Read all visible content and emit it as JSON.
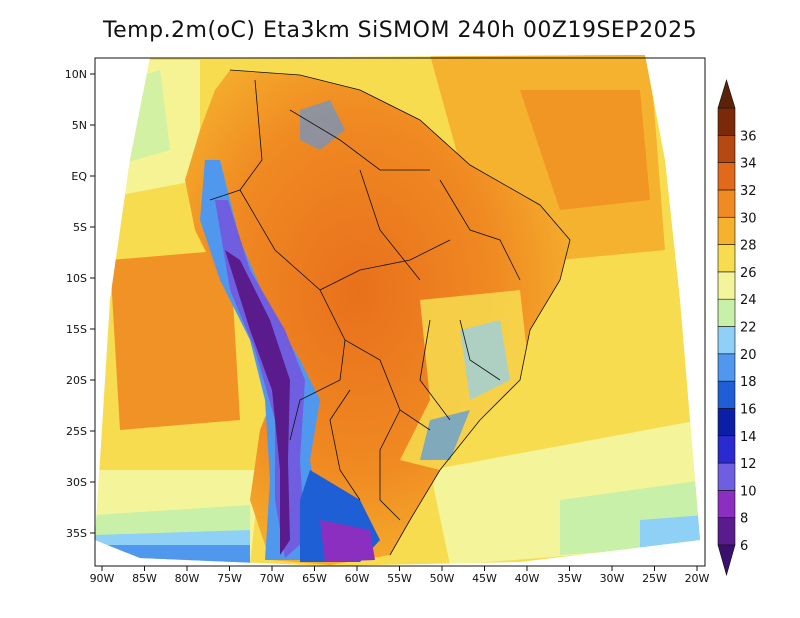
{
  "title": "Temp.2m(oC) Eta3km SiSMOM 240h 00Z19SEP2025",
  "map": {
    "variable": "2m temperature",
    "unit": "oC",
    "lon_ticks": [
      "90W",
      "85W",
      "80W",
      "75W",
      "70W",
      "65W",
      "60W",
      "55W",
      "50W",
      "45W",
      "40W",
      "35W",
      "30W",
      "25W",
      "20W"
    ],
    "lat_ticks": [
      "10N",
      "5N",
      "EQ",
      "5S",
      "10S",
      "15S",
      "20S",
      "25S",
      "30S",
      "35S"
    ]
  },
  "colorbar": {
    "levels": [
      "6",
      "8",
      "10",
      "12",
      "14",
      "16",
      "18",
      "20",
      "22",
      "24",
      "26",
      "28",
      "30",
      "32",
      "34",
      "36"
    ],
    "colors": [
      "#5a1c8c",
      "#8a2fbf",
      "#6f5fe0",
      "#2a2ad0",
      "#0a1ea8",
      "#1f5fd6",
      "#4f98ee",
      "#8fd0f7",
      "#c9f0a8",
      "#f4f59a",
      "#f7dc50",
      "#f5b22e",
      "#f08a22",
      "#e06a1a",
      "#b44a12",
      "#7a2a08"
    ],
    "under_color": "#3b0f6e",
    "over_color": "#5a2208"
  }
}
